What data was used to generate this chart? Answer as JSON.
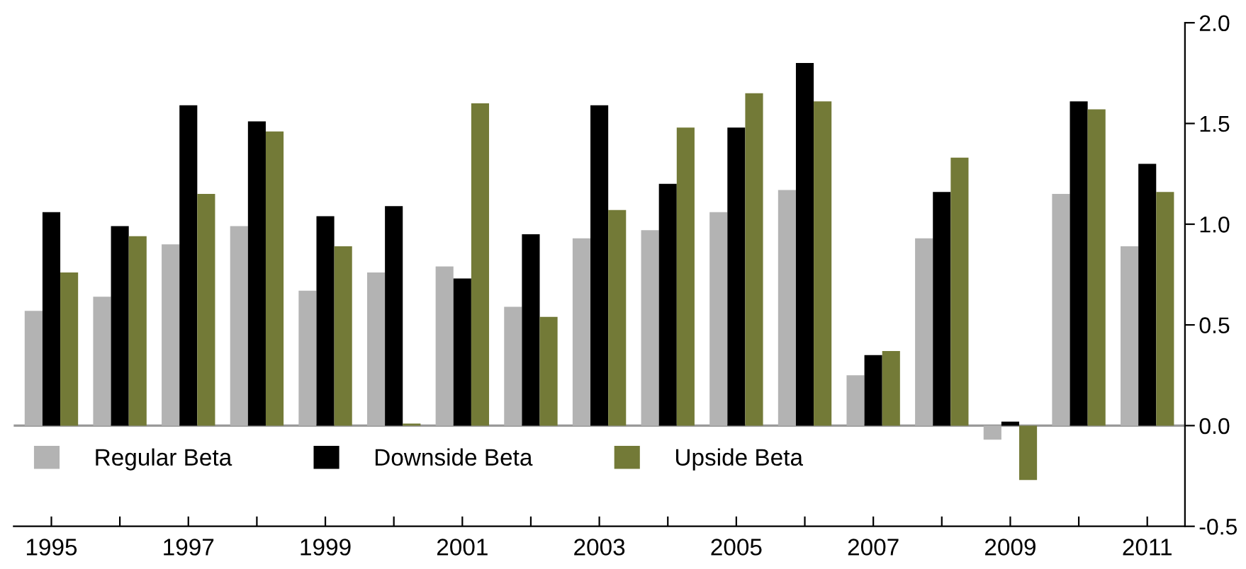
{
  "chart_data": {
    "type": "bar",
    "categories": [
      "1995",
      null,
      "1997",
      null,
      "1999",
      null,
      "2001",
      null,
      "2003",
      null,
      "2005",
      null,
      "2007",
      null,
      "2009",
      null,
      "2011"
    ],
    "series": [
      {
        "name": "Regular Beta",
        "color": "#b3b3b3",
        "values": [
          0.57,
          0.64,
          0.9,
          0.99,
          0.67,
          0.76,
          0.79,
          0.59,
          0.93,
          0.97,
          1.06,
          1.17,
          0.25,
          0.93,
          -0.07,
          1.15,
          0.89
        ]
      },
      {
        "name": "Downside Beta",
        "color": "#000000",
        "values": [
          1.06,
          0.99,
          1.59,
          1.51,
          1.04,
          1.09,
          0.73,
          0.95,
          1.59,
          1.2,
          1.48,
          1.8,
          0.35,
          1.16,
          0.02,
          1.61,
          1.3
        ]
      },
      {
        "name": "Upside Beta",
        "color": "#737a37",
        "values": [
          0.76,
          0.94,
          1.15,
          1.46,
          0.89,
          0.01,
          1.6,
          0.54,
          1.07,
          1.48,
          1.65,
          1.61,
          0.37,
          1.33,
          -0.27,
          1.57,
          1.16
        ]
      }
    ],
    "ylim": [
      -0.5,
      2.0
    ],
    "yticks": [
      {
        "value": -0.5,
        "label": "-0.5"
      },
      {
        "value": 0,
        "label": "0.0"
      },
      {
        "value": 0.5,
        "label": "0.5"
      },
      {
        "value": 1.0,
        "label": "1.0"
      },
      {
        "value": 1.5,
        "label": "1.5"
      },
      {
        "value": 2.0,
        "label": "2.0"
      }
    ],
    "ref_lines": [
      {
        "axis": "y",
        "value": 0,
        "color": "#999999"
      }
    ],
    "grid": false,
    "legend": "bottom left"
  }
}
